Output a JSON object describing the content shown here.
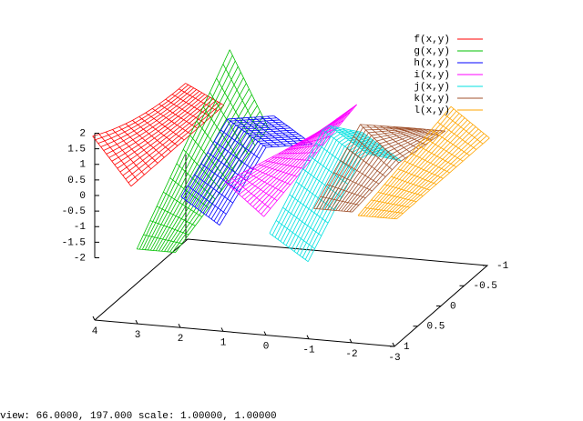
{
  "chart_data": {
    "type": "surface3d",
    "series": [
      {
        "name": "f(x,y)",
        "color": "#ff0000"
      },
      {
        "name": "g(x,y)",
        "color": "#00c000"
      },
      {
        "name": "h(x,y)",
        "color": "#0000ff"
      },
      {
        "name": "i(x,y)",
        "color": "#ff00ff"
      },
      {
        "name": "j(x,y)",
        "color": "#00e0e0"
      },
      {
        "name": "k(x,y)",
        "color": "#a0522d"
      },
      {
        "name": "l(x,y)",
        "color": "#ffa500"
      }
    ],
    "xlim": [
      -3,
      4
    ],
    "xticks": [
      4,
      3,
      2,
      1,
      0,
      -1,
      -2,
      -3
    ],
    "ylim": [
      -1,
      1
    ],
    "yticks": [
      1,
      0.5,
      0,
      -0.5,
      -1
    ],
    "zlim": [
      -2,
      2
    ],
    "zticks": [
      2,
      1.5,
      1,
      0.5,
      0,
      -0.5,
      -1,
      -1.5,
      -2
    ],
    "status_line": "view: 66.0000, 197.000   scale: 1.00000, 1.00000"
  }
}
